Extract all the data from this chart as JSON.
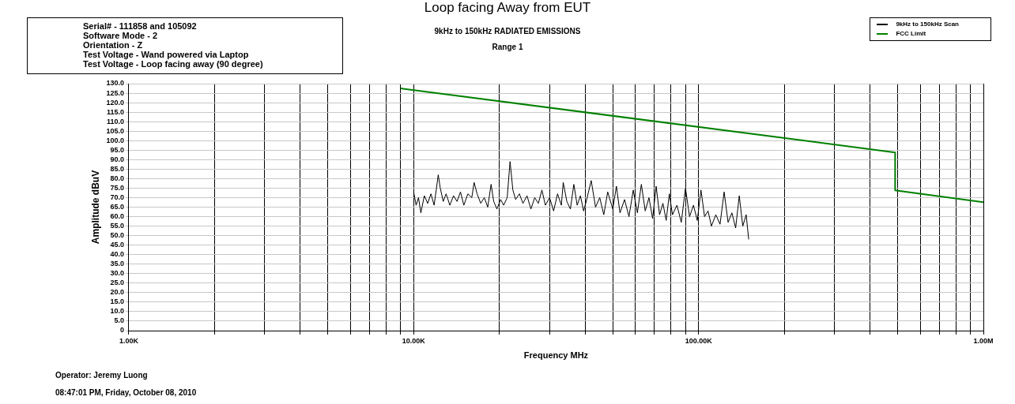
{
  "chart_data": {
    "type": "line",
    "title": "Loop facing Away from EUT",
    "subtitle": "9kHz to 150kHz RADIATED EMISSIONS",
    "xlabel": "Frequency MHz",
    "ylabel": "Amplitude dBuV",
    "annotations": [
      "Serial# - 111858 and 105092",
      "Software Mode - 2",
      "Orientation - Z",
      "Test Voltage - Wand powered via Laptop",
      "Test Voltage - Loop facing away (90 degree)",
      "Range 1",
      "Operator: Jeremy Luong",
      "08:47:01 PM, Friday, October 08, 2010"
    ],
    "log": "x",
    "grid": true,
    "legend": "top right",
    "marker": "none",
    "line_style": "solid",
    "xlim": [
      1000,
      1000000
    ],
    "xticks": [
      {
        "value": 1000,
        "label": "1.00K"
      },
      {
        "value": 2000,
        "label": null
      },
      {
        "value": 3000,
        "label": null
      },
      {
        "value": 4000,
        "label": null
      },
      {
        "value": 5000,
        "label": null
      },
      {
        "value": 6000,
        "label": null
      },
      {
        "value": 7000,
        "label": null
      },
      {
        "value": 8000,
        "label": null
      },
      {
        "value": 9000,
        "label": null
      },
      {
        "value": 10000,
        "label": "10.00K"
      },
      {
        "value": 20000,
        "label": null
      },
      {
        "value": 30000,
        "label": null
      },
      {
        "value": 40000,
        "label": null
      },
      {
        "value": 50000,
        "label": null
      },
      {
        "value": 60000,
        "label": null
      },
      {
        "value": 70000,
        "label": null
      },
      {
        "value": 80000,
        "label": null
      },
      {
        "value": 90000,
        "label": null
      },
      {
        "value": 100000,
        "label": "100.00K"
      },
      {
        "value": 200000,
        "label": null
      },
      {
        "value": 300000,
        "label": null
      },
      {
        "value": 400000,
        "label": null
      },
      {
        "value": 500000,
        "label": null
      },
      {
        "value": 600000,
        "label": null
      },
      {
        "value": 700000,
        "label": null
      },
      {
        "value": 800000,
        "label": null
      },
      {
        "value": 900000,
        "label": null
      },
      {
        "value": 1000000,
        "label": "1.00M"
      }
    ],
    "ylim": [
      0,
      130
    ],
    "yticks": [
      0,
      {
        "value": 5,
        "label": "5.0"
      },
      {
        "value": 10,
        "label": "10.0"
      },
      {
        "value": 15,
        "label": "15.0"
      },
      {
        "value": 20,
        "label": "20.0"
      },
      {
        "value": 25,
        "label": "25.0"
      },
      {
        "value": 30,
        "label": "30.0"
      },
      {
        "value": 35,
        "label": "35.0"
      },
      {
        "value": 40,
        "label": "40.0"
      },
      {
        "value": 45,
        "label": "45.0"
      },
      {
        "value": 50,
        "label": "50.0"
      },
      {
        "value": 55,
        "label": "55.0"
      },
      {
        "value": 60,
        "label": "60.0"
      },
      {
        "value": 65,
        "label": "65.0"
      },
      {
        "value": 70,
        "label": "70.0"
      },
      {
        "value": 75,
        "label": "75.0"
      },
      {
        "value": 80,
        "label": "80.0"
      },
      {
        "value": 85,
        "label": "85.0"
      },
      {
        "value": 90,
        "label": "90.0"
      },
      {
        "value": 95,
        "label": "95.0"
      },
      {
        "value": 100,
        "label": "100.0"
      },
      {
        "value": 105,
        "label": "105.0"
      },
      {
        "value": 110,
        "label": "110.0"
      },
      {
        "value": 115,
        "label": "115.0"
      },
      {
        "value": 120,
        "label": "120.0"
      },
      {
        "value": 125,
        "label": "125.0"
      },
      {
        "value": 130,
        "label": "130.0"
      }
    ],
    "series": [
      {
        "name": "9kHz to 150kHz Scan",
        "color": "#000000",
        "x": [
          10000,
          10200,
          10400,
          10600,
          10900,
          11200,
          11500,
          11800,
          12000,
          12200,
          12400,
          12700,
          13000,
          13400,
          13800,
          14200,
          14600,
          15000,
          15500,
          16000,
          16300,
          16700,
          17200,
          17700,
          18200,
          18700,
          19100,
          19600,
          20200,
          20700,
          21300,
          21800,
          22300,
          22800,
          23500,
          24200,
          25000,
          25800,
          26600,
          27400,
          28200,
          29000,
          30000,
          31000,
          32000,
          33000,
          33500,
          34500,
          35500,
          36500,
          37500,
          38500,
          39500,
          40500,
          42000,
          43500,
          45000,
          46500,
          48000,
          50000,
          51500,
          53000,
          55000,
          57000,
          59000,
          61000,
          63000,
          65000,
          67000,
          69000,
          71000,
          73000,
          75000,
          77000,
          79000,
          81000,
          84000,
          87000,
          90000,
          93000,
          96000,
          99000,
          102000,
          105000,
          108000,
          111000,
          115000,
          119000,
          123000,
          127000,
          131000,
          135000,
          139000,
          143000,
          147000,
          150000
        ],
        "values": [
          73,
          66,
          70,
          62,
          71,
          67,
          72,
          66,
          74,
          82,
          75,
          68,
          72,
          66,
          71,
          68,
          73,
          66,
          72,
          70,
          78,
          72,
          67,
          70,
          65,
          77,
          68,
          64,
          69,
          66,
          70,
          89,
          74,
          69,
          72,
          67,
          71,
          64,
          70,
          67,
          74,
          66,
          70,
          63,
          72,
          66,
          78,
          68,
          64,
          77,
          66,
          71,
          63,
          69,
          79,
          65,
          70,
          61,
          73,
          64,
          76,
          62,
          69,
          60,
          74,
          62,
          77,
          63,
          70,
          59,
          76,
          61,
          67,
          58,
          72,
          61,
          66,
          57,
          75,
          60,
          66,
          58,
          74,
          60,
          63,
          55,
          61,
          56,
          73,
          57,
          62,
          54,
          71,
          55,
          61,
          48
        ]
      },
      {
        "name": "FCC Limit",
        "color": "#008000",
        "x": [
          9000,
          490000,
          490000,
          1000000
        ],
        "values": [
          127.5,
          93.8,
          73.8,
          67.6
        ]
      }
    ]
  }
}
